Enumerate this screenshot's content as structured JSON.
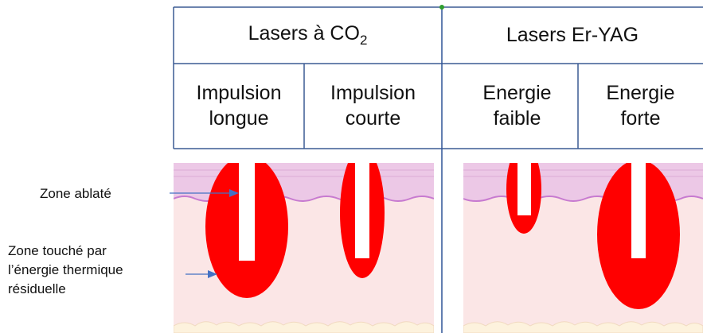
{
  "header": {
    "group_co2_prefix": "Lasers à CO",
    "group_co2_subscript": "2",
    "group_eryag": "Lasers Er-YAG",
    "impulsion_longue_line1": "Impulsion",
    "impulsion_longue_line2": "longue",
    "impulsion_courte_line1": "Impulsion",
    "impulsion_courte_line2": "courte",
    "energie_faible_line1": "Energie",
    "energie_faible_line2": "faible",
    "energie_forte_line1": "Energie",
    "energie_forte_line2": "forte"
  },
  "labels": {
    "zone_ablatee": "Zone ablaté",
    "zone_thermique_line1": "Zone touché par",
    "zone_thermique_line2": "l’énergie thermique",
    "zone_thermique_line3": "résiduelle"
  },
  "colors": {
    "table_border": "#3b5b93",
    "ablation_red": "#ff0000",
    "dermis": "#fbe6e6",
    "epidermis": "#ecc8e6",
    "basal_line": "#c77ad0",
    "arrow": "#4472c4",
    "divider": "#2f5597",
    "marker": "#2e9e2e"
  }
}
